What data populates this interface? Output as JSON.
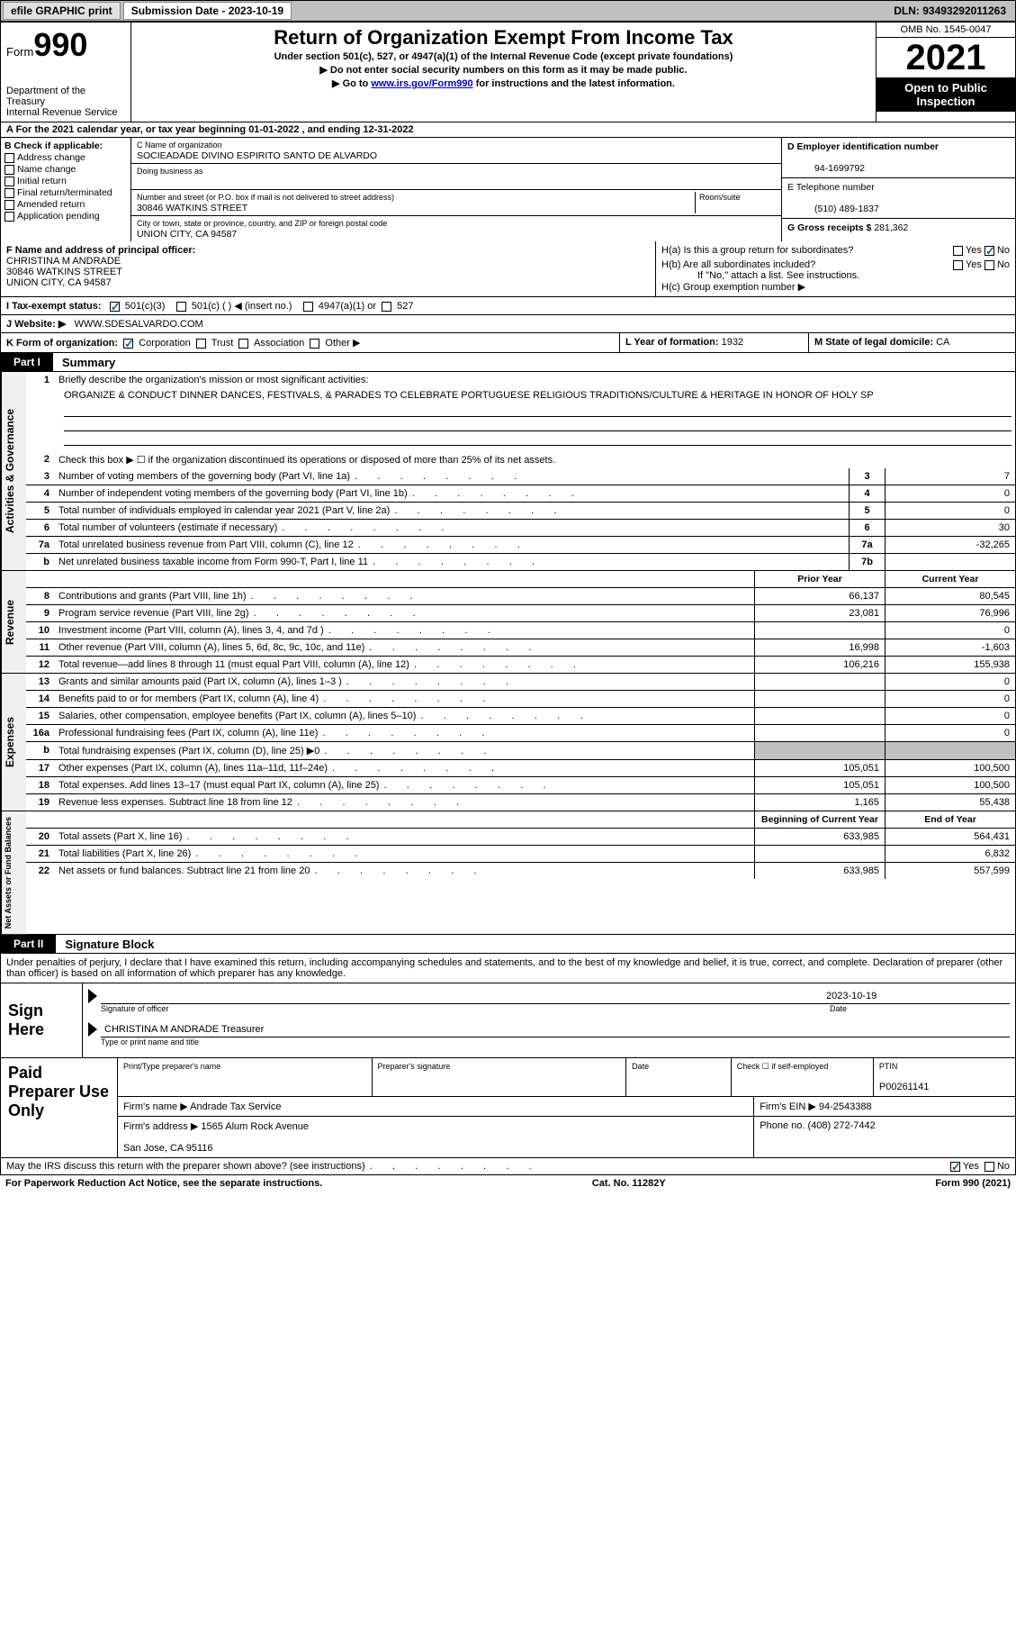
{
  "topbar": {
    "efile": "efile GRAPHIC print",
    "submission_label": "Submission Date - 2023-10-19",
    "dln": "DLN: 93493292011263"
  },
  "header": {
    "form_label": "Form",
    "form_number": "990",
    "dept": "Department of the Treasury",
    "irs": "Internal Revenue Service",
    "title": "Return of Organization Exempt From Income Tax",
    "sub1": "Under section 501(c), 527, or 4947(a)(1) of the Internal Revenue Code (except private foundations)",
    "sub2": "▶ Do not enter social security numbers on this form as it may be made public.",
    "sub3_pre": "▶ Go to ",
    "sub3_link": "www.irs.gov/Form990",
    "sub3_post": " for instructions and the latest information.",
    "omb": "OMB No. 1545-0047",
    "year": "2021",
    "otp": "Open to Public Inspection"
  },
  "dates_row": "A For the 2021 calendar year, or tax year beginning 01-01-2022   , and ending 12-31-2022",
  "box_b": {
    "title": "B Check if applicable:",
    "items": [
      "Address change",
      "Name change",
      "Initial return",
      "Final return/terminated",
      "Amended return",
      "Application pending"
    ]
  },
  "box_c": {
    "name_lbl": "C Name of organization",
    "name": "SOCIEADADE DIVINO ESPIRITO SANTO DE ALVARDO",
    "dba_lbl": "Doing business as",
    "addr_lbl": "Number and street (or P.O. box if mail is not delivered to street address)",
    "room_lbl": "Room/suite",
    "addr": "30846 WATKINS STREET",
    "city_lbl": "City or town, state or province, country, and ZIP or foreign postal code",
    "city": "UNION CITY, CA  94587"
  },
  "box_d": {
    "ein_lbl": "D Employer identification number",
    "ein": "94-1699792",
    "tel_lbl": "E Telephone number",
    "tel": "(510) 489-1837",
    "gross_lbl": "G Gross receipts $",
    "gross": "281,362"
  },
  "box_f": {
    "lbl": "F Name and address of principal officer:",
    "name": "CHRISTINA M ANDRADE",
    "addr1": "30846 WATKINS STREET",
    "addr2": "UNION CITY, CA  94587"
  },
  "box_h": {
    "ha": "H(a)  Is this a group return for subordinates?",
    "hb": "H(b)  Are all subordinates included?",
    "hb_note": "If \"No,\" attach a list. See instructions.",
    "hc": "H(c)  Group exemption number ▶"
  },
  "row_i": {
    "lbl": "I   Tax-exempt status:",
    "o1": "501(c)(3)",
    "o2": "501(c) (  ) ◀ (insert no.)",
    "o3": "4947(a)(1) or",
    "o4": "527"
  },
  "row_j": {
    "lbl": "J   Website: ▶",
    "val": "WWW.SDESALVARDO.COM"
  },
  "row_k": {
    "lbl": "K Form of organization:",
    "o1": "Corporation",
    "o2": "Trust",
    "o3": "Association",
    "o4": "Other ▶"
  },
  "row_l": {
    "lbl": "L Year of formation:",
    "val": "1932"
  },
  "row_m": {
    "lbl": "M State of legal domicile:",
    "val": "CA"
  },
  "part1": {
    "tab": "Part I",
    "title": "Summary"
  },
  "summary": {
    "side1": "Activities & Governance",
    "side2": "Revenue",
    "side3": "Expenses",
    "side4": "Net Assets or Fund Balances",
    "q1_lbl": "Briefly describe the organization's mission or most significant activities:",
    "q1_text": "ORGANIZE & CONDUCT DINNER DANCES, FESTIVALS, & PARADES TO CELEBRATE PORTUGUESE RELIGIOUS TRADITIONS/CULTURE & HERITAGE IN HONOR OF HOLY SP",
    "q2": "Check this box ▶ ☐ if the organization discontinued its operations or disposed of more than 25% of its net assets.",
    "rows_a": [
      {
        "n": "3",
        "d": "Number of voting members of the governing body (Part VI, line 1a)",
        "b": "3",
        "v": "7"
      },
      {
        "n": "4",
        "d": "Number of independent voting members of the governing body (Part VI, line 1b)",
        "b": "4",
        "v": "0"
      },
      {
        "n": "5",
        "d": "Total number of individuals employed in calendar year 2021 (Part V, line 2a)",
        "b": "5",
        "v": "0"
      },
      {
        "n": "6",
        "d": "Total number of volunteers (estimate if necessary)",
        "b": "6",
        "v": "30"
      },
      {
        "n": "7a",
        "d": "Total unrelated business revenue from Part VIII, column (C), line 12",
        "b": "7a",
        "v": "-32,265"
      },
      {
        "n": "b",
        "d": "Net unrelated business taxable income from Form 990-T, Part I, line 11",
        "b": "7b",
        "v": ""
      }
    ],
    "hdr_py": "Prior Year",
    "hdr_cy": "Current Year",
    "rows_rev": [
      {
        "n": "8",
        "d": "Contributions and grants (Part VIII, line 1h)",
        "py": "66,137",
        "cy": "80,545"
      },
      {
        "n": "9",
        "d": "Program service revenue (Part VIII, line 2g)",
        "py": "23,081",
        "cy": "76,996"
      },
      {
        "n": "10",
        "d": "Investment income (Part VIII, column (A), lines 3, 4, and 7d )",
        "py": "",
        "cy": "0"
      },
      {
        "n": "11",
        "d": "Other revenue (Part VIII, column (A), lines 5, 6d, 8c, 9c, 10c, and 11e)",
        "py": "16,998",
        "cy": "-1,603"
      },
      {
        "n": "12",
        "d": "Total revenue—add lines 8 through 11 (must equal Part VIII, column (A), line 12)",
        "py": "106,216",
        "cy": "155,938"
      }
    ],
    "rows_exp": [
      {
        "n": "13",
        "d": "Grants and similar amounts paid (Part IX, column (A), lines 1–3 )",
        "py": "",
        "cy": "0"
      },
      {
        "n": "14",
        "d": "Benefits paid to or for members (Part IX, column (A), line 4)",
        "py": "",
        "cy": "0"
      },
      {
        "n": "15",
        "d": "Salaries, other compensation, employee benefits (Part IX, column (A), lines 5–10)",
        "py": "",
        "cy": "0"
      },
      {
        "n": "16a",
        "d": "Professional fundraising fees (Part IX, column (A), line 11e)",
        "py": "",
        "cy": "0"
      },
      {
        "n": "b",
        "d": "Total fundraising expenses (Part IX, column (D), line 25) ▶0",
        "py": "shade",
        "cy": "shade"
      },
      {
        "n": "17",
        "d": "Other expenses (Part IX, column (A), lines 11a–11d, 11f–24e)",
        "py": "105,051",
        "cy": "100,500"
      },
      {
        "n": "18",
        "d": "Total expenses. Add lines 13–17 (must equal Part IX, column (A), line 25)",
        "py": "105,051",
        "cy": "100,500"
      },
      {
        "n": "19",
        "d": "Revenue less expenses. Subtract line 18 from line 12",
        "py": "1,165",
        "cy": "55,438"
      }
    ],
    "hdr_boy": "Beginning of Current Year",
    "hdr_eoy": "End of Year",
    "rows_net": [
      {
        "n": "20",
        "d": "Total assets (Part X, line 16)",
        "py": "633,985",
        "cy": "564,431"
      },
      {
        "n": "21",
        "d": "Total liabilities (Part X, line 26)",
        "py": "",
        "cy": "6,832"
      },
      {
        "n": "22",
        "d": "Net assets or fund balances. Subtract line 21 from line 20",
        "py": "633,985",
        "cy": "557,599"
      }
    ]
  },
  "part2": {
    "tab": "Part II",
    "title": "Signature Block"
  },
  "sig": {
    "decl": "Under penalties of perjury, I declare that I have examined this return, including accompanying schedules and statements, and to the best of my knowledge and belief, it is true, correct, and complete. Declaration of preparer (other than officer) is based on all information of which preparer has any knowledge.",
    "sign_here": "Sign Here",
    "sig_lbl": "Signature of officer",
    "date_val": "2023-10-19",
    "date_lbl": "Date",
    "name": "CHRISTINA M ANDRADE  Treasurer",
    "name_lbl": "Type or print name and title"
  },
  "paid": {
    "title": "Paid Preparer Use Only",
    "r1": {
      "c1": "Print/Type preparer's name",
      "c2": "Preparer's signature",
      "c3": "Date",
      "c4_lbl": "Check ☐ if self-employed",
      "c5_lbl": "PTIN",
      "c5": "P00261141"
    },
    "r2": {
      "c1_lbl": "Firm's name    ▶",
      "c1": "Andrade Tax Service",
      "c2_lbl": "Firm's EIN ▶",
      "c2": "94-2543388"
    },
    "r3": {
      "c1_lbl": "Firm's address ▶",
      "c1": "1565 Alum Rock Avenue",
      "c1b": "San Jose, CA  95116",
      "c2_lbl": "Phone no.",
      "c2": "(408) 272-7442"
    }
  },
  "footer": {
    "q": "May the IRS discuss this return with the preparer shown above? (see instructions)",
    "paperwork": "For Paperwork Reduction Act Notice, see the separate instructions.",
    "cat": "Cat. No. 11282Y",
    "form": "Form 990 (2021)"
  }
}
